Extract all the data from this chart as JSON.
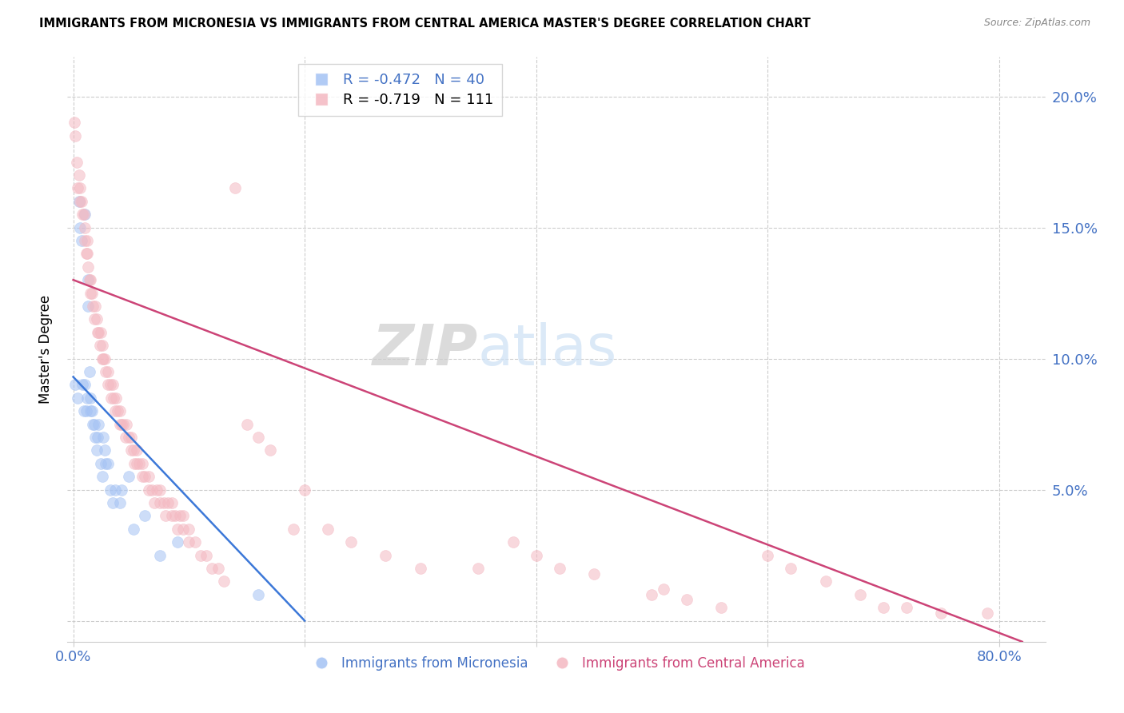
{
  "title": "IMMIGRANTS FROM MICRONESIA VS IMMIGRANTS FROM CENTRAL AMERICA MASTER'S DEGREE CORRELATION CHART",
  "source": "Source: ZipAtlas.com",
  "ylabel": "Master's Degree",
  "y_ticks": [
    0.0,
    0.05,
    0.1,
    0.15,
    0.2
  ],
  "y_tick_labels_right": [
    "",
    "5.0%",
    "10.0%",
    "15.0%",
    "20.0%"
  ],
  "x_ticks": [
    0.0,
    0.2,
    0.4,
    0.6,
    0.8
  ],
  "x_tick_labels": [
    "0.0%",
    "",
    "",
    "",
    "80.0%"
  ],
  "xlim": [
    -0.005,
    0.84
  ],
  "ylim": [
    -0.008,
    0.215
  ],
  "blue_R": -0.472,
  "blue_N": 40,
  "pink_R": -0.719,
  "pink_N": 111,
  "blue_color": "#a4c2f4",
  "pink_color": "#f4b8c1",
  "blue_edge_color": "#6d9eeb",
  "pink_edge_color": "#e06c8a",
  "blue_line_color": "#3c78d8",
  "pink_line_color": "#cc4477",
  "watermark_zip": "ZIP",
  "watermark_atlas": "atlas",
  "blue_scatter_x": [
    0.002,
    0.004,
    0.005,
    0.006,
    0.007,
    0.008,
    0.009,
    0.01,
    0.01,
    0.011,
    0.012,
    0.013,
    0.013,
    0.014,
    0.015,
    0.015,
    0.016,
    0.017,
    0.018,
    0.019,
    0.02,
    0.021,
    0.022,
    0.024,
    0.025,
    0.026,
    0.027,
    0.028,
    0.03,
    0.032,
    0.034,
    0.036,
    0.04,
    0.042,
    0.048,
    0.052,
    0.062,
    0.075,
    0.09,
    0.16
  ],
  "blue_scatter_y": [
    0.09,
    0.085,
    0.16,
    0.15,
    0.145,
    0.09,
    0.08,
    0.09,
    0.155,
    0.08,
    0.085,
    0.13,
    0.12,
    0.095,
    0.085,
    0.08,
    0.08,
    0.075,
    0.075,
    0.07,
    0.065,
    0.07,
    0.075,
    0.06,
    0.055,
    0.07,
    0.065,
    0.06,
    0.06,
    0.05,
    0.045,
    0.05,
    0.045,
    0.05,
    0.055,
    0.035,
    0.04,
    0.025,
    0.03,
    0.01
  ],
  "pink_scatter_x": [
    0.001,
    0.002,
    0.003,
    0.004,
    0.005,
    0.006,
    0.006,
    0.007,
    0.008,
    0.009,
    0.01,
    0.01,
    0.011,
    0.012,
    0.012,
    0.013,
    0.014,
    0.015,
    0.015,
    0.016,
    0.017,
    0.018,
    0.019,
    0.02,
    0.021,
    0.022,
    0.023,
    0.024,
    0.025,
    0.025,
    0.026,
    0.027,
    0.028,
    0.03,
    0.03,
    0.032,
    0.033,
    0.034,
    0.035,
    0.036,
    0.037,
    0.038,
    0.04,
    0.04,
    0.042,
    0.043,
    0.045,
    0.046,
    0.048,
    0.05,
    0.05,
    0.052,
    0.053,
    0.055,
    0.055,
    0.057,
    0.06,
    0.06,
    0.062,
    0.065,
    0.065,
    0.068,
    0.07,
    0.072,
    0.075,
    0.075,
    0.078,
    0.08,
    0.082,
    0.085,
    0.085,
    0.088,
    0.09,
    0.092,
    0.095,
    0.095,
    0.1,
    0.1,
    0.105,
    0.11,
    0.115,
    0.12,
    0.125,
    0.13,
    0.14,
    0.15,
    0.16,
    0.17,
    0.19,
    0.2,
    0.22,
    0.24,
    0.27,
    0.3,
    0.35,
    0.38,
    0.4,
    0.42,
    0.45,
    0.5,
    0.51,
    0.53,
    0.56,
    0.6,
    0.62,
    0.65,
    0.68,
    0.7,
    0.72,
    0.75,
    0.79
  ],
  "pink_scatter_y": [
    0.19,
    0.185,
    0.175,
    0.165,
    0.17,
    0.165,
    0.16,
    0.16,
    0.155,
    0.155,
    0.15,
    0.145,
    0.14,
    0.14,
    0.145,
    0.135,
    0.13,
    0.13,
    0.125,
    0.125,
    0.12,
    0.115,
    0.12,
    0.115,
    0.11,
    0.11,
    0.105,
    0.11,
    0.105,
    0.1,
    0.1,
    0.1,
    0.095,
    0.09,
    0.095,
    0.09,
    0.085,
    0.09,
    0.085,
    0.08,
    0.085,
    0.08,
    0.075,
    0.08,
    0.075,
    0.075,
    0.07,
    0.075,
    0.07,
    0.065,
    0.07,
    0.065,
    0.06,
    0.06,
    0.065,
    0.06,
    0.055,
    0.06,
    0.055,
    0.05,
    0.055,
    0.05,
    0.045,
    0.05,
    0.045,
    0.05,
    0.045,
    0.04,
    0.045,
    0.04,
    0.045,
    0.04,
    0.035,
    0.04,
    0.035,
    0.04,
    0.035,
    0.03,
    0.03,
    0.025,
    0.025,
    0.02,
    0.02,
    0.015,
    0.165,
    0.075,
    0.07,
    0.065,
    0.035,
    0.05,
    0.035,
    0.03,
    0.025,
    0.02,
    0.02,
    0.03,
    0.025,
    0.02,
    0.018,
    0.01,
    0.012,
    0.008,
    0.005,
    0.025,
    0.02,
    0.015,
    0.01,
    0.005,
    0.005,
    0.003,
    0.003
  ],
  "blue_line_x": [
    0.0,
    0.2
  ],
  "blue_line_y": [
    0.093,
    0.0
  ],
  "pink_line_x": [
    0.0,
    0.82
  ],
  "pink_line_y": [
    0.13,
    -0.008
  ],
  "marker_size": 100,
  "alpha": 0.55,
  "figsize": [
    14.06,
    8.92
  ],
  "dpi": 100
}
